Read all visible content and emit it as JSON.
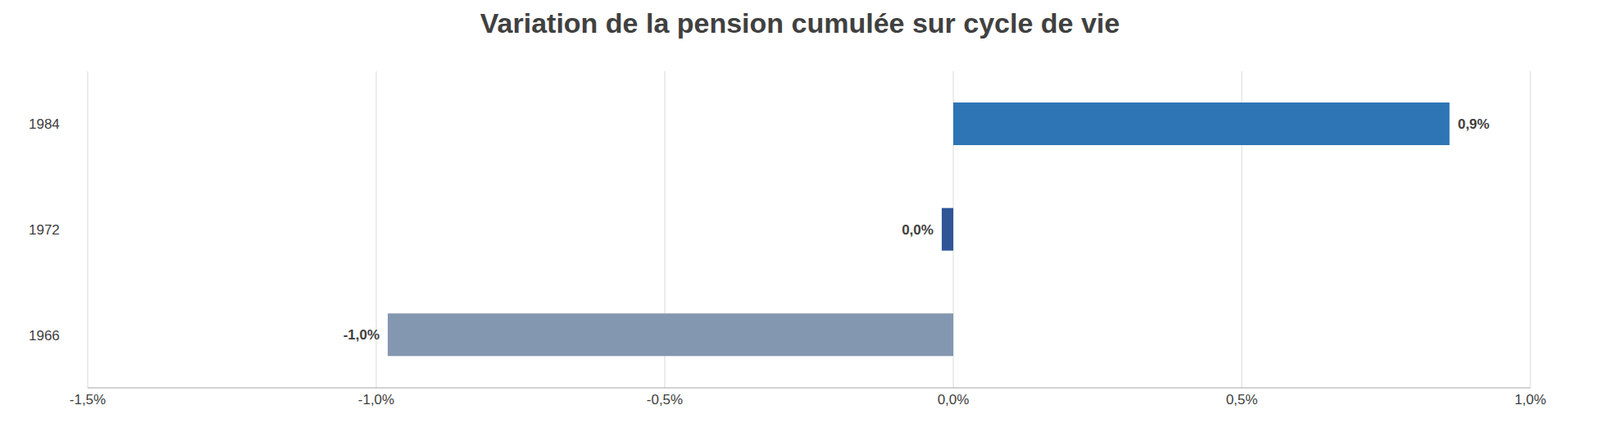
{
  "chart_data": {
    "type": "bar",
    "orientation": "horizontal",
    "title": "Variation de la pension cumulée sur cycle de vie",
    "categories": [
      "1984",
      "1972",
      "1966"
    ],
    "values": [
      0.86,
      -0.02,
      -0.98
    ],
    "value_labels": [
      "0,9%",
      "0,0%",
      "-1,0%"
    ],
    "colors": [
      "#2e75b6",
      "#2f5597",
      "#8497b0"
    ],
    "xlim": [
      -1.5,
      1.0
    ],
    "xticks": [
      {
        "value": -1.5,
        "label": "-1,5%"
      },
      {
        "value": -1.0,
        "label": "-1,0%"
      },
      {
        "value": -0.5,
        "label": "-0,5%"
      },
      {
        "value": 0.0,
        "label": "0,0%"
      },
      {
        "value": 0.5,
        "label": "0,5%"
      },
      {
        "value": 1.0,
        "label": "1,0%"
      }
    ],
    "grid": true,
    "data_labels": true
  }
}
